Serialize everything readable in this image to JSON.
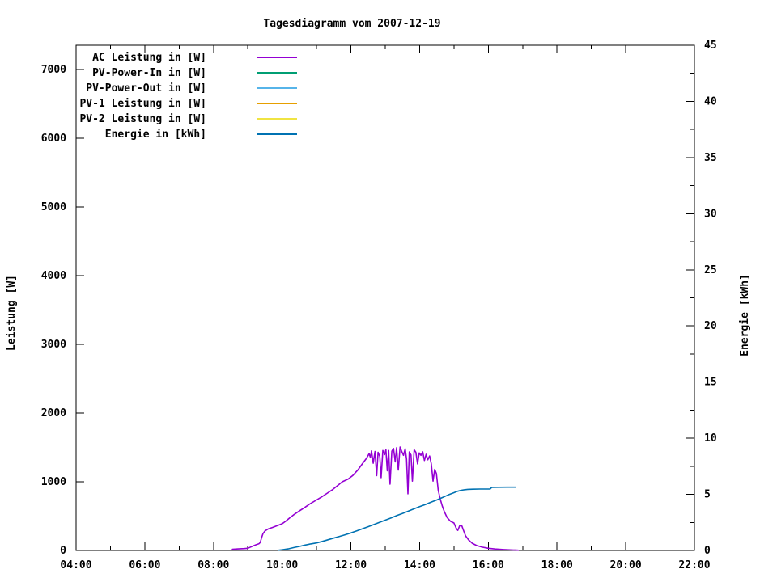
{
  "chart_data": {
    "type": "line",
    "title": "Tagesdiagramm vom 2007-12-19",
    "x_axis": {
      "unit": "time",
      "range_hours": [
        4,
        22
      ],
      "major_tick_labels": [
        "04:00",
        "06:00",
        "08:00",
        "10:00",
        "12:00",
        "14:00",
        "16:00",
        "18:00",
        "20:00",
        "22:00"
      ],
      "major_tick_hours": [
        4,
        6,
        8,
        10,
        12,
        14,
        16,
        18,
        20,
        22
      ],
      "minor_tick_hours": [
        5,
        7,
        9,
        11,
        13,
        15,
        17,
        19,
        21
      ],
      "ticks_mirrored_on_top": true
    },
    "y_left": {
      "label": "Leistung [W]",
      "range": [
        0,
        7353
      ],
      "major_ticks": [
        0,
        1000,
        2000,
        3000,
        4000,
        5000,
        6000,
        7000
      ],
      "tick_labels": [
        "0",
        "1000",
        "2000",
        "3000",
        "4000",
        "5000",
        "6000",
        "7000"
      ]
    },
    "y_right": {
      "label": "Energie [kWh]",
      "range": [
        0,
        45
      ],
      "major_ticks": [
        0,
        5,
        10,
        15,
        20,
        25,
        30,
        35,
        40,
        45
      ],
      "tick_labels": [
        "0",
        "5",
        "10",
        "15",
        "20",
        "25",
        "30",
        "35",
        "40",
        "45"
      ],
      "minor_ticks": [
        2.5,
        7.5,
        12.5,
        17.5,
        22.5,
        27.5,
        32.5,
        37.5,
        42.5
      ]
    },
    "grid": false,
    "legend_position": "top-left-inside",
    "legend": [
      {
        "label": "AC Leistung in [W]",
        "color": "#9400d3",
        "plotted": true
      },
      {
        "label": "PV-Power-In in [W]",
        "color": "#009e73",
        "plotted": false
      },
      {
        "label": "PV-Power-Out in [W]",
        "color": "#56b4e9",
        "plotted": false
      },
      {
        "label": "PV-1 Leistung in [W]",
        "color": "#e69f00",
        "plotted": false
      },
      {
        "label": "PV-2 Leistung in [W]",
        "color": "#f0e442",
        "plotted": false
      },
      {
        "label": "Energie in [kWh]",
        "color": "#0072b2",
        "plotted": true
      }
    ],
    "series": [
      {
        "name": "AC Leistung in [W]",
        "axis": "left",
        "color": "#9400d3",
        "points_time_h_vs_W": [
          [
            8.55,
            18
          ],
          [
            8.72,
            22
          ],
          [
            8.9,
            27
          ],
          [
            9.0,
            32
          ],
          [
            9.08,
            50
          ],
          [
            9.17,
            70
          ],
          [
            9.25,
            85
          ],
          [
            9.32,
            97
          ],
          [
            9.36,
            115
          ],
          [
            9.4,
            185
          ],
          [
            9.44,
            245
          ],
          [
            9.5,
            285
          ],
          [
            9.6,
            315
          ],
          [
            9.72,
            335
          ],
          [
            9.85,
            360
          ],
          [
            10.0,
            390
          ],
          [
            10.1,
            425
          ],
          [
            10.22,
            475
          ],
          [
            10.35,
            525
          ],
          [
            10.5,
            575
          ],
          [
            10.65,
            625
          ],
          [
            10.8,
            675
          ],
          [
            11.0,
            735
          ],
          [
            11.15,
            780
          ],
          [
            11.3,
            830
          ],
          [
            11.45,
            880
          ],
          [
            11.6,
            940
          ],
          [
            11.75,
            1000
          ],
          [
            11.92,
            1040
          ],
          [
            12.05,
            1090
          ],
          [
            12.2,
            1170
          ],
          [
            12.33,
            1260
          ],
          [
            12.45,
            1340
          ],
          [
            12.53,
            1410
          ],
          [
            12.57,
            1350
          ],
          [
            12.6,
            1450
          ],
          [
            12.65,
            1270
          ],
          [
            12.7,
            1440
          ],
          [
            12.75,
            1090
          ],
          [
            12.79,
            1430
          ],
          [
            12.84,
            1370
          ],
          [
            12.88,
            1060
          ],
          [
            12.93,
            1455
          ],
          [
            12.98,
            1395
          ],
          [
            13.02,
            1465
          ],
          [
            13.06,
            1160
          ],
          [
            13.1,
            1455
          ],
          [
            13.14,
            965
          ],
          [
            13.19,
            1445
          ],
          [
            13.24,
            1485
          ],
          [
            13.29,
            1290
          ],
          [
            13.33,
            1495
          ],
          [
            13.38,
            1170
          ],
          [
            13.43,
            1505
          ],
          [
            13.48,
            1440
          ],
          [
            13.53,
            1385
          ],
          [
            13.58,
            1480
          ],
          [
            13.62,
            1330
          ],
          [
            13.66,
            825
          ],
          [
            13.7,
            1435
          ],
          [
            13.75,
            1390
          ],
          [
            13.79,
            1010
          ],
          [
            13.84,
            1465
          ],
          [
            13.89,
            1430
          ],
          [
            13.94,
            1260
          ],
          [
            13.99,
            1420
          ],
          [
            14.04,
            1385
          ],
          [
            14.09,
            1435
          ],
          [
            14.14,
            1310
          ],
          [
            14.19,
            1400
          ],
          [
            14.24,
            1320
          ],
          [
            14.29,
            1375
          ],
          [
            14.34,
            1260
          ],
          [
            14.39,
            1010
          ],
          [
            14.44,
            1180
          ],
          [
            14.49,
            1120
          ],
          [
            14.54,
            880
          ],
          [
            14.6,
            750
          ],
          [
            14.66,
            645
          ],
          [
            14.72,
            565
          ],
          [
            14.8,
            480
          ],
          [
            14.9,
            425
          ],
          [
            15.0,
            400
          ],
          [
            15.06,
            330
          ],
          [
            15.11,
            292
          ],
          [
            15.17,
            365
          ],
          [
            15.23,
            355
          ],
          [
            15.28,
            288
          ],
          [
            15.34,
            212
          ],
          [
            15.43,
            152
          ],
          [
            15.53,
            105
          ],
          [
            15.66,
            72
          ],
          [
            15.82,
            48
          ],
          [
            16.0,
            32
          ],
          [
            16.2,
            21
          ],
          [
            16.45,
            13
          ],
          [
            16.7,
            7
          ],
          [
            16.87,
            4
          ]
        ]
      },
      {
        "name": "Energie in [kWh]",
        "axis": "right",
        "color": "#0072b2",
        "points_time_h_vs_kWh": [
          [
            9.9,
            0.02
          ],
          [
            10.0,
            0.06
          ],
          [
            10.17,
            0.14
          ],
          [
            10.33,
            0.25
          ],
          [
            10.5,
            0.36
          ],
          [
            10.67,
            0.48
          ],
          [
            10.83,
            0.58
          ],
          [
            11.0,
            0.67
          ],
          [
            11.17,
            0.81
          ],
          [
            11.33,
            0.95
          ],
          [
            11.5,
            1.1
          ],
          [
            11.67,
            1.25
          ],
          [
            11.83,
            1.4
          ],
          [
            12.0,
            1.56
          ],
          [
            12.17,
            1.74
          ],
          [
            12.33,
            1.93
          ],
          [
            12.5,
            2.12
          ],
          [
            12.67,
            2.31
          ],
          [
            12.83,
            2.5
          ],
          [
            13.0,
            2.7
          ],
          [
            13.17,
            2.9
          ],
          [
            13.33,
            3.1
          ],
          [
            13.5,
            3.3
          ],
          [
            13.67,
            3.5
          ],
          [
            13.83,
            3.7
          ],
          [
            14.0,
            3.9
          ],
          [
            14.17,
            4.1
          ],
          [
            14.33,
            4.3
          ],
          [
            14.5,
            4.5
          ],
          [
            14.67,
            4.72
          ],
          [
            14.83,
            4.95
          ],
          [
            15.0,
            5.15
          ],
          [
            15.1,
            5.27
          ],
          [
            15.2,
            5.35
          ],
          [
            15.3,
            5.41
          ],
          [
            15.4,
            5.44
          ],
          [
            15.55,
            5.46
          ],
          [
            15.75,
            5.47
          ],
          [
            16.05,
            5.47
          ],
          [
            16.1,
            5.62
          ],
          [
            16.3,
            5.63
          ],
          [
            16.55,
            5.64
          ],
          [
            16.8,
            5.64
          ]
        ]
      }
    ]
  }
}
